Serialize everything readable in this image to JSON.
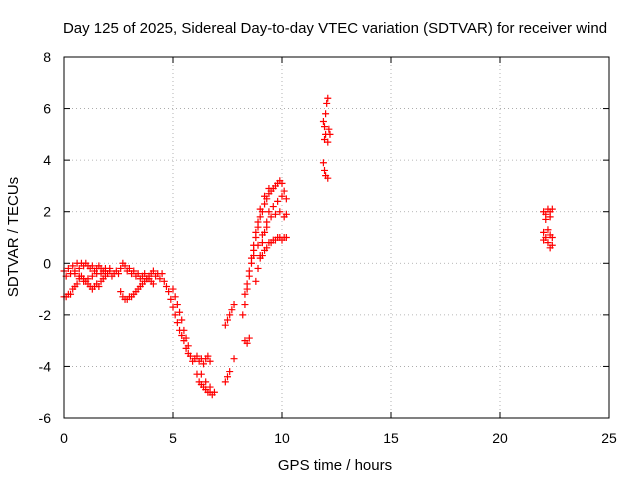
{
  "chart_data": {
    "type": "scatter",
    "title": "Day 125 of 2025, Sidereal Day-to-day VTEC variation (SDTVAR) for receiver wind",
    "xlabel": "GPS time / hours",
    "ylabel": "SDTVAR / TECUs",
    "xlim": [
      0,
      25
    ],
    "ylim": [
      -6,
      8
    ],
    "xticks": [
      0,
      5,
      10,
      15,
      20,
      25
    ],
    "yticks": [
      -6,
      -4,
      -2,
      0,
      2,
      4,
      6,
      8
    ],
    "grid": true,
    "marker": "plus",
    "color": "#ff0000",
    "series": [
      {
        "name": "SDTVAR",
        "points": [
          [
            0.0,
            -0.3
          ],
          [
            0.1,
            -0.5
          ],
          [
            0.2,
            -0.2
          ],
          [
            0.3,
            -0.4
          ],
          [
            0.4,
            -0.1
          ],
          [
            0.5,
            -0.3
          ],
          [
            0.6,
            0.0
          ],
          [
            0.7,
            -0.2
          ],
          [
            0.8,
            0.0
          ],
          [
            0.9,
            -0.1
          ],
          [
            1.0,
            0.0
          ],
          [
            1.1,
            -0.1
          ],
          [
            1.2,
            -0.2
          ],
          [
            1.3,
            -0.1
          ],
          [
            1.4,
            -0.3
          ],
          [
            1.5,
            -0.2
          ],
          [
            1.6,
            -0.1
          ],
          [
            1.7,
            -0.2
          ],
          [
            1.8,
            -0.3
          ],
          [
            1.9,
            -0.2
          ],
          [
            2.0,
            -0.4
          ],
          [
            2.1,
            -0.3
          ],
          [
            2.2,
            -0.5
          ],
          [
            2.3,
            -0.4
          ],
          [
            2.4,
            -0.3
          ],
          [
            2.5,
            -0.4
          ],
          [
            2.6,
            -0.2
          ],
          [
            2.7,
            0.0
          ],
          [
            2.8,
            -0.1
          ],
          [
            2.9,
            -0.3
          ],
          [
            3.0,
            -0.2
          ],
          [
            3.1,
            -0.4
          ],
          [
            3.2,
            -0.3
          ],
          [
            3.3,
            -0.5
          ],
          [
            3.4,
            -0.4
          ],
          [
            3.5,
            -0.6
          ],
          [
            3.6,
            -0.5
          ],
          [
            3.7,
            -0.4
          ],
          [
            3.8,
            -0.6
          ],
          [
            3.9,
            -0.5
          ],
          [
            4.0,
            -0.4
          ],
          [
            4.1,
            -0.3
          ],
          [
            4.2,
            -0.5
          ],
          [
            4.3,
            -0.4
          ],
          [
            4.4,
            -0.6
          ],
          [
            4.5,
            -0.4
          ],
          [
            4.6,
            -0.7
          ],
          [
            4.7,
            -0.9
          ],
          [
            4.8,
            -1.1
          ],
          [
            4.9,
            -1.4
          ],
          [
            5.0,
            -1.7
          ],
          [
            5.1,
            -2.0
          ],
          [
            5.2,
            -2.3
          ],
          [
            5.3,
            -2.6
          ],
          [
            5.4,
            -2.8
          ],
          [
            5.5,
            -3.0
          ],
          [
            5.6,
            -3.3
          ],
          [
            5.7,
            -3.5
          ],
          [
            5.8,
            -3.6
          ],
          [
            5.9,
            -3.8
          ],
          [
            6.0,
            -3.7
          ],
          [
            6.1,
            -3.6
          ],
          [
            6.2,
            -3.8
          ],
          [
            6.3,
            -3.7
          ],
          [
            6.4,
            -3.9
          ],
          [
            6.5,
            -3.7
          ],
          [
            6.6,
            -3.6
          ],
          [
            6.7,
            -3.8
          ],
          [
            0.0,
            -1.3
          ],
          [
            0.1,
            -1.3
          ],
          [
            0.2,
            -1.2
          ],
          [
            0.3,
            -1.2
          ],
          [
            0.4,
            -1.0
          ],
          [
            0.5,
            -0.9
          ],
          [
            0.6,
            -0.8
          ],
          [
            0.7,
            -0.6
          ],
          [
            0.8,
            -0.5
          ],
          [
            0.9,
            -0.6
          ],
          [
            1.0,
            -0.7
          ],
          [
            1.1,
            -0.8
          ],
          [
            1.2,
            -0.9
          ],
          [
            1.3,
            -1.0
          ],
          [
            1.4,
            -0.9
          ],
          [
            1.5,
            -0.8
          ],
          [
            1.6,
            -0.9
          ],
          [
            1.7,
            -0.7
          ],
          [
            1.8,
            -0.6
          ],
          [
            1.9,
            -0.5
          ],
          [
            0.5,
            -0.4
          ],
          [
            0.7,
            -0.5
          ],
          [
            0.9,
            -0.7
          ],
          [
            1.1,
            -0.6
          ],
          [
            1.3,
            -0.5
          ],
          [
            1.5,
            -0.4
          ],
          [
            1.7,
            -0.4
          ],
          [
            1.9,
            -0.3
          ],
          [
            2.1,
            -0.2
          ],
          [
            2.6,
            -1.1
          ],
          [
            2.7,
            -1.3
          ],
          [
            2.8,
            -1.4
          ],
          [
            2.9,
            -1.4
          ],
          [
            3.0,
            -1.3
          ],
          [
            3.1,
            -1.3
          ],
          [
            3.2,
            -1.2
          ],
          [
            3.3,
            -1.1
          ],
          [
            3.4,
            -1.0
          ],
          [
            3.5,
            -0.9
          ],
          [
            3.6,
            -0.8
          ],
          [
            3.7,
            -0.7
          ],
          [
            3.8,
            -0.6
          ],
          [
            3.9,
            -0.6
          ],
          [
            4.0,
            -0.7
          ],
          [
            4.1,
            -0.8
          ],
          [
            5.0,
            -1.0
          ],
          [
            5.1,
            -1.3
          ],
          [
            5.2,
            -1.6
          ],
          [
            5.3,
            -1.9
          ],
          [
            5.4,
            -2.2
          ],
          [
            5.5,
            -2.6
          ],
          [
            5.6,
            -2.9
          ],
          [
            5.7,
            -3.2
          ],
          [
            6.1,
            -4.3
          ],
          [
            6.2,
            -4.6
          ],
          [
            6.3,
            -4.7
          ],
          [
            6.4,
            -4.8
          ],
          [
            6.5,
            -4.9
          ],
          [
            6.6,
            -5.0
          ],
          [
            6.7,
            -5.0
          ],
          [
            6.8,
            -5.1
          ],
          [
            6.9,
            -5.0
          ],
          [
            6.3,
            -4.3
          ],
          [
            6.5,
            -4.6
          ],
          [
            6.7,
            -4.8
          ],
          [
            7.4,
            -4.6
          ],
          [
            7.5,
            -4.4
          ],
          [
            7.6,
            -4.2
          ],
          [
            7.4,
            -2.4
          ],
          [
            7.5,
            -2.2
          ],
          [
            7.6,
            -2.0
          ],
          [
            7.7,
            -1.8
          ],
          [
            7.8,
            -1.6
          ],
          [
            7.8,
            -3.7
          ],
          [
            8.3,
            -3.0
          ],
          [
            8.4,
            -3.1
          ],
          [
            8.5,
            -2.9
          ],
          [
            8.2,
            -2.0
          ],
          [
            8.3,
            -1.6
          ],
          [
            8.4,
            -1.0
          ],
          [
            8.5,
            -0.5
          ],
          [
            8.6,
            0.0
          ],
          [
            8.7,
            0.5
          ],
          [
            8.8,
            1.0
          ],
          [
            8.9,
            1.4
          ],
          [
            9.0,
            1.8
          ],
          [
            9.1,
            2.0
          ],
          [
            9.2,
            2.3
          ],
          [
            9.3,
            2.5
          ],
          [
            9.4,
            2.7
          ],
          [
            9.5,
            2.8
          ],
          [
            9.6,
            2.9
          ],
          [
            9.7,
            3.0
          ],
          [
            9.8,
            3.1
          ],
          [
            9.9,
            3.2
          ],
          [
            10.0,
            3.1
          ],
          [
            10.1,
            2.8
          ],
          [
            10.2,
            2.5
          ],
          [
            8.3,
            -1.2
          ],
          [
            8.4,
            -0.8
          ],
          [
            8.5,
            -0.3
          ],
          [
            8.6,
            0.2
          ],
          [
            8.7,
            0.7
          ],
          [
            8.8,
            1.2
          ],
          [
            8.9,
            1.6
          ],
          [
            9.0,
            2.1
          ],
          [
            9.2,
            2.6
          ],
          [
            9.4,
            2.9
          ],
          [
            8.8,
            -0.7
          ],
          [
            8.9,
            -0.2
          ],
          [
            9.0,
            0.3
          ],
          [
            9.1,
            0.8
          ],
          [
            9.2,
            1.2
          ],
          [
            9.3,
            1.6
          ],
          [
            9.4,
            2.0
          ],
          [
            9.6,
            2.2
          ],
          [
            9.8,
            2.4
          ],
          [
            10.0,
            2.6
          ],
          [
            8.7,
            0.3
          ],
          [
            8.9,
            0.7
          ],
          [
            9.1,
            1.1
          ],
          [
            9.3,
            1.4
          ],
          [
            9.5,
            1.8
          ],
          [
            9.7,
            1.9
          ],
          [
            9.9,
            2.0
          ],
          [
            10.1,
            1.8
          ],
          [
            10.2,
            1.9
          ],
          [
            9.0,
            0.2
          ],
          [
            9.1,
            0.3
          ],
          [
            9.2,
            0.5
          ],
          [
            9.3,
            0.6
          ],
          [
            9.4,
            0.8
          ],
          [
            9.5,
            0.8
          ],
          [
            9.6,
            0.9
          ],
          [
            9.7,
            0.9
          ],
          [
            9.8,
            1.0
          ],
          [
            9.9,
            1.0
          ],
          [
            10.0,
            0.9
          ],
          [
            10.1,
            1.0
          ],
          [
            10.2,
            1.0
          ],
          [
            11.9,
            5.5
          ],
          [
            11.95,
            5.3
          ],
          [
            12.0,
            5.8
          ],
          [
            12.05,
            6.2
          ],
          [
            12.1,
            6.4
          ],
          [
            12.15,
            5.2
          ],
          [
            12.2,
            5.0
          ],
          [
            11.95,
            4.8
          ],
          [
            12.0,
            5.0
          ],
          [
            12.1,
            4.7
          ],
          [
            11.9,
            3.9
          ],
          [
            11.95,
            3.6
          ],
          [
            12.0,
            3.4
          ],
          [
            12.1,
            3.3
          ],
          [
            22.0,
            2.0
          ],
          [
            22.1,
            1.9
          ],
          [
            22.2,
            2.1
          ],
          [
            22.3,
            1.8
          ],
          [
            22.4,
            2.1
          ],
          [
            22.1,
            1.7
          ],
          [
            22.3,
            2.0
          ],
          [
            22.0,
            1.2
          ],
          [
            22.1,
            1.0
          ],
          [
            22.2,
            0.8
          ],
          [
            22.3,
            1.1
          ],
          [
            22.4,
            0.7
          ],
          [
            22.0,
            0.9
          ],
          [
            22.2,
            1.3
          ],
          [
            22.4,
            1.0
          ],
          [
            22.3,
            0.6
          ]
        ]
      }
    ]
  }
}
